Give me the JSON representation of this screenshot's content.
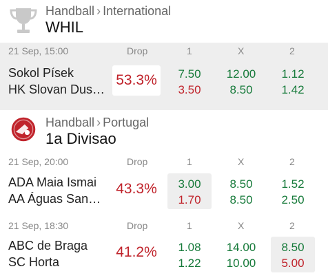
{
  "colors": {
    "green": "#167a3a",
    "red": "#c0232b",
    "panel": "#eeeeee"
  },
  "headers": {
    "drop": "Drop",
    "col1": "1",
    "colx": "X",
    "col2": "2"
  },
  "leagues": [
    {
      "sport": "Handball",
      "separator": "›",
      "region": "International",
      "name": "WHIL",
      "icon": "trophy-icon",
      "matches": [
        {
          "date": "21 Sep, 15:00",
          "home": "Sokol Písek",
          "away": "HK Slovan Dus…",
          "drop": "53.3%",
          "odds1": [
            "7.50",
            "3.50"
          ],
          "oddsx": [
            "12.00",
            "8.50"
          ],
          "odds2": [
            "1.12",
            "1.42"
          ]
        }
      ]
    },
    {
      "sport": "Handball",
      "separator": "›",
      "region": "Portugal",
      "name": "1a Divisao",
      "icon": "portugal-handball-logo-icon",
      "matches": [
        {
          "date": "21 Sep, 20:00",
          "home": "ADA Maia Ismai",
          "away": "AA Águas San…",
          "drop": "43.3%",
          "odds1": [
            "3.00",
            "1.70"
          ],
          "oddsx": [
            "8.50",
            "8.50"
          ],
          "odds2": [
            "1.52",
            "2.50"
          ]
        },
        {
          "date": "21 Sep, 18:30",
          "home": "ABC de Braga",
          "away": "SC Horta",
          "drop": "41.2%",
          "odds1": [
            "1.08",
            "1.22"
          ],
          "oddsx": [
            "14.00",
            "10.00"
          ],
          "odds2": [
            "8.50",
            "5.00"
          ]
        }
      ]
    }
  ]
}
